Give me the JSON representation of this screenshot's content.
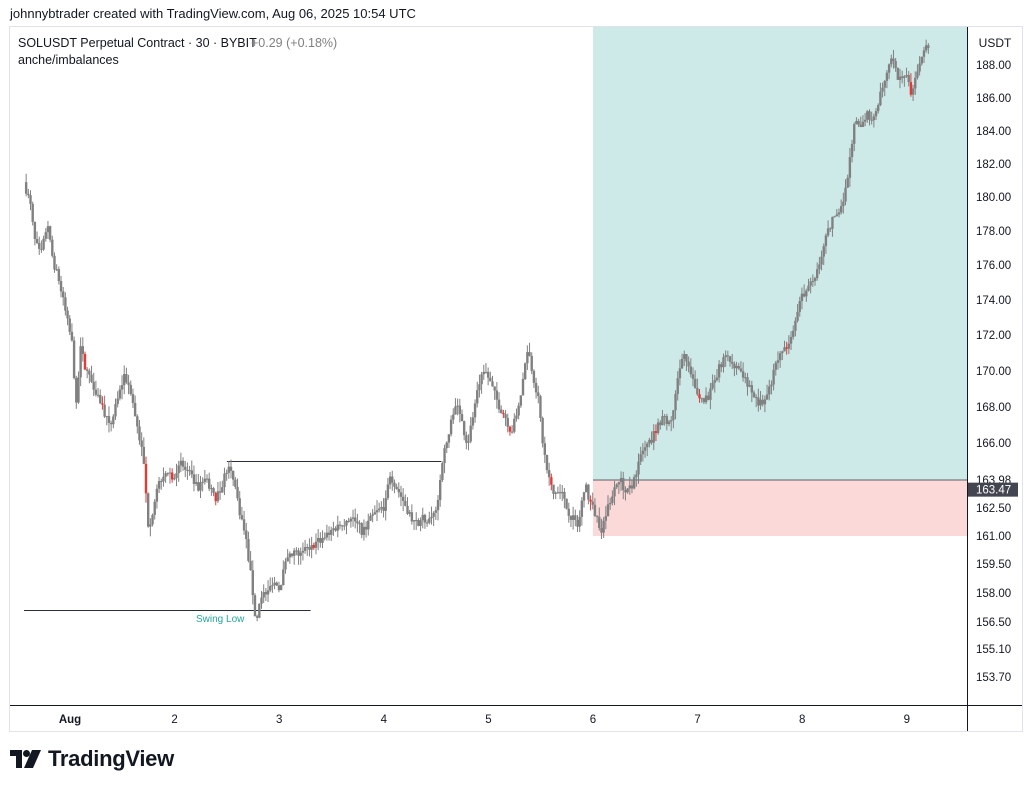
{
  "header": {
    "attribution": "johnnybtrader created with TradingView.com, Aug 06, 2025 10:54 UTC"
  },
  "legend": {
    "symbol": "SOLUSDT Perpetual Contract · 30 · BYBIT",
    "change": "+0.29 (+0.18%)",
    "indicator": "anche/imbalances"
  },
  "annotations": {
    "swing_low": "Swing Low"
  },
  "colors": {
    "up": "#808080",
    "down": "#e53935",
    "profit_zone": "#cdeae9",
    "loss_zone": "#fbd9d8",
    "accent_text": "#26a69a"
  },
  "brand": {
    "name": "TradingView",
    "icon": "tradingview-logo-icon"
  },
  "chart_data": {
    "type": "candlestick",
    "currency": "USDT",
    "y_ticks": [
      188.0,
      186.0,
      184.0,
      182.0,
      180.0,
      178.0,
      176.0,
      174.0,
      172.0,
      170.0,
      168.0,
      166.0,
      163.98,
      162.5,
      161.0,
      159.5,
      158.0,
      156.5,
      155.1,
      153.7
    ],
    "x_ticks": [
      {
        "label": "Aug",
        "day": 1
      },
      {
        "label": "2",
        "day": 2
      },
      {
        "label": "3",
        "day": 3
      },
      {
        "label": "4",
        "day": 4
      },
      {
        "label": "5",
        "day": 5
      },
      {
        "label": "6",
        "day": 6
      },
      {
        "label": "7",
        "day": 7
      },
      {
        "label": "8",
        "day": 8
      },
      {
        "label": "9",
        "day": 9
      }
    ],
    "x_range": [
      0.56,
      9.62
    ],
    "last_price": "163.47",
    "position": {
      "entry": 163.98,
      "target": 189.2,
      "stop": 161.0,
      "start_day": 6.0,
      "end_day": 9.62
    },
    "levels": [
      {
        "name": "swing-low-line",
        "price": 157.1,
        "start_day": 0.56,
        "end_day": 3.3
      },
      {
        "name": "swing-high-line",
        "price": 165.0,
        "start_day": 2.5,
        "end_day": 4.55
      }
    ],
    "price_path": [
      [
        0.56,
        180.9
      ],
      [
        0.62,
        179.6
      ],
      [
        0.66,
        177.5
      ],
      [
        0.72,
        176.5
      ],
      [
        0.78,
        178.4
      ],
      [
        0.84,
        176.2
      ],
      [
        0.9,
        175.0
      ],
      [
        0.96,
        173.2
      ],
      [
        1.02,
        171.5
      ],
      [
        1.06,
        168.0
      ],
      [
        1.1,
        171.2
      ],
      [
        1.16,
        170.0
      ],
      [
        1.22,
        169.3
      ],
      [
        1.3,
        168.2
      ],
      [
        1.38,
        166.8
      ],
      [
        1.46,
        168.5
      ],
      [
        1.52,
        169.8
      ],
      [
        1.58,
        168.9
      ],
      [
        1.64,
        167.0
      ],
      [
        1.7,
        165.2
      ],
      [
        1.75,
        161.5
      ],
      [
        1.8,
        162.5
      ],
      [
        1.86,
        164.0
      ],
      [
        1.92,
        164.6
      ],
      [
        1.98,
        164.2
      ],
      [
        2.06,
        164.8
      ],
      [
        2.14,
        164.3
      ],
      [
        2.22,
        163.5
      ],
      [
        2.3,
        164.1
      ],
      [
        2.38,
        163.0
      ],
      [
        2.44,
        163.5
      ],
      [
        2.5,
        164.6
      ],
      [
        2.56,
        164.2
      ],
      [
        2.62,
        162.4
      ],
      [
        2.68,
        160.9
      ],
      [
        2.74,
        158.4
      ],
      [
        2.78,
        156.3
      ],
      [
        2.82,
        158.0
      ],
      [
        2.88,
        157.8
      ],
      [
        2.94,
        158.7
      ],
      [
        3.0,
        158.2
      ],
      [
        3.06,
        159.5
      ],
      [
        3.14,
        160.1
      ],
      [
        3.22,
        160.0
      ],
      [
        3.3,
        160.5
      ],
      [
        3.4,
        160.8
      ],
      [
        3.5,
        161.3
      ],
      [
        3.6,
        161.7
      ],
      [
        3.7,
        162.0
      ],
      [
        3.8,
        161.2
      ],
      [
        3.9,
        162.1
      ],
      [
        4.0,
        162.6
      ],
      [
        4.06,
        164.3
      ],
      [
        4.14,
        163.4
      ],
      [
        4.22,
        162.5
      ],
      [
        4.3,
        161.6
      ],
      [
        4.38,
        162.0
      ],
      [
        4.46,
        161.8
      ],
      [
        4.52,
        163.0
      ],
      [
        4.56,
        165.1
      ],
      [
        4.62,
        166.4
      ],
      [
        4.68,
        168.3
      ],
      [
        4.74,
        167.3
      ],
      [
        4.8,
        165.9
      ],
      [
        4.86,
        167.8
      ],
      [
        4.92,
        169.5
      ],
      [
        4.98,
        169.9
      ],
      [
        5.04,
        169.0
      ],
      [
        5.1,
        168.1
      ],
      [
        5.16,
        167.5
      ],
      [
        5.22,
        166.6
      ],
      [
        5.28,
        167.8
      ],
      [
        5.34,
        169.8
      ],
      [
        5.38,
        171.2
      ],
      [
        5.42,
        170.0
      ],
      [
        5.48,
        168.3
      ],
      [
        5.52,
        166.0
      ],
      [
        5.56,
        164.5
      ],
      [
        5.62,
        163.2
      ],
      [
        5.68,
        163.6
      ],
      [
        5.74,
        162.6
      ],
      [
        5.8,
        162.0
      ],
      [
        5.86,
        161.5
      ],
      [
        5.92,
        163.8
      ],
      [
        5.96,
        163.0
      ],
      [
        6.02,
        162.2
      ],
      [
        6.08,
        161.4
      ],
      [
        6.14,
        162.4
      ],
      [
        6.2,
        163.6
      ],
      [
        6.26,
        164.1
      ],
      [
        6.32,
        163.2
      ],
      [
        6.38,
        163.8
      ],
      [
        6.44,
        165.0
      ],
      [
        6.5,
        165.8
      ],
      [
        6.56,
        166.2
      ],
      [
        6.62,
        167.0
      ],
      [
        6.68,
        167.6
      ],
      [
        6.74,
        166.8
      ],
      [
        6.8,
        169.2
      ],
      [
        6.86,
        171.2
      ],
      [
        6.92,
        170.0
      ],
      [
        6.98,
        168.9
      ],
      [
        7.04,
        168.4
      ],
      [
        7.1,
        168.6
      ],
      [
        7.16,
        169.3
      ],
      [
        7.22,
        170.4
      ],
      [
        7.28,
        170.8
      ],
      [
        7.34,
        170.4
      ],
      [
        7.4,
        170.1
      ],
      [
        7.46,
        169.6
      ],
      [
        7.52,
        168.8
      ],
      [
        7.58,
        168.2
      ],
      [
        7.64,
        168.3
      ],
      [
        7.7,
        169.2
      ],
      [
        7.76,
        170.6
      ],
      [
        7.82,
        171.0
      ],
      [
        7.88,
        171.8
      ],
      [
        7.94,
        173.0
      ],
      [
        8.0,
        174.2
      ],
      [
        8.06,
        174.8
      ],
      [
        8.12,
        175.0
      ],
      [
        8.18,
        176.5
      ],
      [
        8.24,
        177.8
      ],
      [
        8.3,
        178.8
      ],
      [
        8.36,
        179.2
      ],
      [
        8.42,
        180.6
      ],
      [
        8.46,
        182.5
      ],
      [
        8.5,
        184.6
      ],
      [
        8.56,
        184.2
      ],
      [
        8.62,
        185.0
      ],
      [
        8.68,
        184.8
      ],
      [
        8.74,
        186.0
      ],
      [
        8.8,
        187.2
      ],
      [
        8.86,
        188.4
      ],
      [
        8.92,
        187.0
      ],
      [
        8.98,
        187.5
      ],
      [
        9.04,
        186.3
      ],
      [
        9.1,
        187.8
      ],
      [
        9.16,
        189.0
      ],
      [
        9.22,
        189.2
      ]
    ]
  }
}
